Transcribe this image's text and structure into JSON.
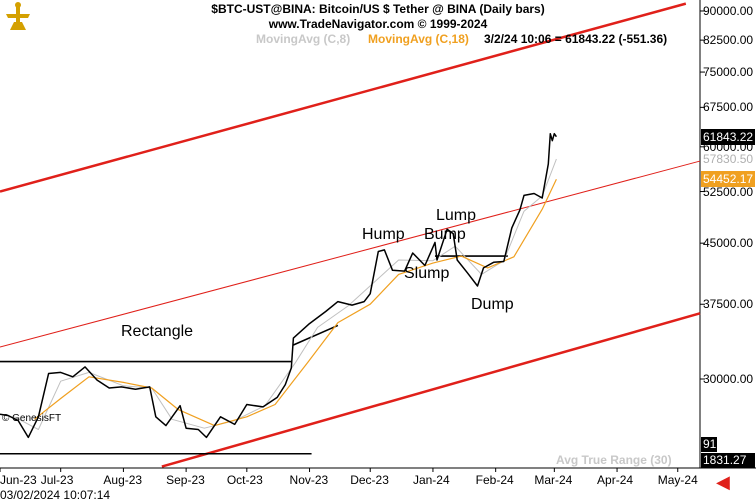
{
  "header": {
    "title": "$BTC-UST@BINA:  Bitcoin/US $ Tether @ BINA  (Daily bars)",
    "source": "www.TradeNavigator.com © 1999-2024",
    "ma_fast": "MovingAvg (C,8)",
    "ma_slow": "MovingAvg (C,18)",
    "quote": "3/2/24 10:06 = 61843.22 (-551.36)"
  },
  "annotations": {
    "rectangle": "Rectangle",
    "hump": "Hump",
    "bump": "Bump",
    "lump": "Lump",
    "slump": "Slump",
    "dump": "Dump"
  },
  "footer": {
    "copyright": "© GenesisFT",
    "atr_label": "Avg True Range (30)",
    "atr_value": "1831.27",
    "atr_small": "91",
    "datetime": "03/02/2024 10:07:14"
  },
  "colors": {
    "price": "#000000",
    "ma_fast": "#c0c0c0",
    "ma_slow": "#f0a020",
    "channel": "#e0201a",
    "badge_price_bg": "#000000",
    "badge_ma8_bg": "#ffffff",
    "badge_ma18_bg": "#f0a020"
  },
  "chart_data": {
    "type": "line",
    "title": "$BTC-UST@BINA:  Bitcoin/US $ Tether @ BINA  (Daily bars)",
    "y_scale": "log",
    "ylim": [
      23000,
      93000
    ],
    "y_ticks": [
      30000,
      37500,
      45000,
      52500,
      60000,
      67500,
      75000,
      82500,
      90000
    ],
    "y_tick_labels": [
      "30000.00",
      "37500.00",
      "45000.00",
      "52500.00",
      "60000.00",
      "67500.00",
      "75000.00",
      "82500.00",
      "90000.00"
    ],
    "x_range": [
      "2023-06-01",
      "2024-05-12"
    ],
    "x_ticks": [
      {
        "date": "2023-06-01",
        "label": "Jun-23"
      },
      {
        "date": "2023-07-01",
        "label": "Jul-23"
      },
      {
        "date": "2023-08-01",
        "label": "Aug-23"
      },
      {
        "date": "2023-09-01",
        "label": "Sep-23"
      },
      {
        "date": "2023-10-01",
        "label": "Oct-23"
      },
      {
        "date": "2023-11-01",
        "label": "Nov-23"
      },
      {
        "date": "2023-12-01",
        "label": "Dec-23"
      },
      {
        "date": "2024-01-01",
        "label": "Jan-24"
      },
      {
        "date": "2024-02-01",
        "label": "Feb-24"
      },
      {
        "date": "2024-03-01",
        "label": "Mar-24"
      },
      {
        "date": "2024-04-01",
        "label": "Apr-24"
      },
      {
        "date": "2024-05-01",
        "label": "May-24"
      }
    ],
    "series": [
      {
        "name": "$BTC-UST@BINA",
        "points": [
          [
            "2023-06-01",
            27000
          ],
          [
            "2023-06-05",
            26900
          ],
          [
            "2023-06-10",
            26500
          ],
          [
            "2023-06-15",
            25200
          ],
          [
            "2023-06-20",
            26800
          ],
          [
            "2023-06-25",
            30500
          ],
          [
            "2023-07-01",
            30600
          ],
          [
            "2023-07-07",
            30200
          ],
          [
            "2023-07-13",
            31100
          ],
          [
            "2023-07-19",
            29900
          ],
          [
            "2023-07-25",
            29200
          ],
          [
            "2023-07-31",
            29300
          ],
          [
            "2023-08-07",
            29100
          ],
          [
            "2023-08-14",
            29300
          ],
          [
            "2023-08-17",
            26800
          ],
          [
            "2023-08-22",
            26100
          ],
          [
            "2023-08-29",
            27700
          ],
          [
            "2023-09-01",
            25900
          ],
          [
            "2023-09-07",
            25800
          ],
          [
            "2023-09-11",
            25200
          ],
          [
            "2023-09-18",
            26800
          ],
          [
            "2023-09-25",
            26200
          ],
          [
            "2023-10-01",
            27800
          ],
          [
            "2023-10-09",
            27600
          ],
          [
            "2023-10-16",
            28400
          ],
          [
            "2023-10-20",
            29500
          ],
          [
            "2023-10-23",
            31000
          ],
          [
            "2023-10-24",
            33900
          ],
          [
            "2023-11-01",
            35400
          ],
          [
            "2023-11-09",
            36700
          ],
          [
            "2023-11-15",
            37800
          ],
          [
            "2023-11-22",
            37400
          ],
          [
            "2023-11-28",
            37800
          ],
          [
            "2023-12-01",
            38700
          ],
          [
            "2023-12-05",
            43900
          ],
          [
            "2023-12-08",
            44100
          ],
          [
            "2023-12-12",
            41500
          ],
          [
            "2023-12-18",
            41400
          ],
          [
            "2023-12-22",
            43700
          ],
          [
            "2023-12-28",
            42100
          ],
          [
            "2024-01-02",
            45100
          ],
          [
            "2024-01-03",
            42800
          ],
          [
            "2024-01-08",
            46900
          ],
          [
            "2024-01-11",
            46300
          ],
          [
            "2024-01-13",
            42800
          ],
          [
            "2024-01-18",
            41200
          ],
          [
            "2024-01-23",
            39600
          ],
          [
            "2024-01-26",
            41800
          ],
          [
            "2024-01-31",
            42500
          ],
          [
            "2024-02-05",
            42600
          ],
          [
            "2024-02-09",
            47100
          ],
          [
            "2024-02-13",
            49700
          ],
          [
            "2024-02-15",
            51900
          ],
          [
            "2024-02-20",
            52200
          ],
          [
            "2024-02-24",
            51500
          ],
          [
            "2024-02-27",
            57000
          ],
          [
            "2024-02-28",
            62400
          ],
          [
            "2024-02-29",
            61100
          ],
          [
            "2024-03-01",
            62400
          ],
          [
            "2024-03-02",
            61843.22
          ]
        ]
      },
      {
        "name": "MovingAvg (C,8)",
        "points": [
          [
            "2023-06-08",
            26800
          ],
          [
            "2023-06-20",
            25800
          ],
          [
            "2023-07-01",
            29800
          ],
          [
            "2023-07-15",
            30600
          ],
          [
            "2023-08-01",
            29400
          ],
          [
            "2023-08-15",
            29200
          ],
          [
            "2023-08-25",
            26600
          ],
          [
            "2023-09-10",
            25900
          ],
          [
            "2023-09-25",
            26500
          ],
          [
            "2023-10-10",
            27700
          ],
          [
            "2023-10-25",
            31500
          ],
          [
            "2023-11-05",
            35000
          ],
          [
            "2023-11-20",
            37300
          ],
          [
            "2023-12-05",
            40500
          ],
          [
            "2023-12-15",
            42800
          ],
          [
            "2024-01-01",
            42700
          ],
          [
            "2024-01-12",
            44600
          ],
          [
            "2024-01-25",
            41000
          ],
          [
            "2024-02-05",
            42700
          ],
          [
            "2024-02-15",
            49500
          ],
          [
            "2024-02-24",
            51800
          ],
          [
            "2024-03-02",
            57830.5
          ]
        ]
      },
      {
        "name": "MovingAvg (C,18)",
        "points": [
          [
            "2023-06-18",
            26600
          ],
          [
            "2023-07-01",
            28300
          ],
          [
            "2023-07-15",
            30200
          ],
          [
            "2023-08-01",
            29700
          ],
          [
            "2023-08-15",
            29200
          ],
          [
            "2023-08-28",
            27400
          ],
          [
            "2023-09-15",
            26100
          ],
          [
            "2023-10-01",
            26800
          ],
          [
            "2023-10-15",
            27800
          ],
          [
            "2023-10-31",
            31500
          ],
          [
            "2023-11-15",
            35500
          ],
          [
            "2023-12-01",
            37500
          ],
          [
            "2023-12-15",
            41000
          ],
          [
            "2024-01-01",
            42400
          ],
          [
            "2024-01-15",
            43300
          ],
          [
            "2024-01-28",
            41800
          ],
          [
            "2024-02-10",
            43200
          ],
          [
            "2024-02-24",
            49800
          ],
          [
            "2024-03-02",
            54452.17
          ]
        ]
      }
    ],
    "last_values": {
      "price": "61843.22",
      "ma_fast": "57830.50",
      "ma_slow": "54452.17"
    },
    "trendlines": [
      {
        "style": "channel-thick",
        "from": [
          "2023-06-01",
          52500
        ],
        "to": [
          "2024-05-05",
          92000
        ]
      },
      {
        "style": "channel-thin",
        "from": [
          "2023-06-01",
          33000
        ],
        "to": [
          "2024-05-12",
          57500
        ]
      },
      {
        "style": "channel-thick",
        "from": [
          "2023-08-20",
          23100
        ],
        "to": [
          "2024-05-12",
          36500
        ]
      },
      {
        "style": "black",
        "from": [
          "2023-06-01",
          31600
        ],
        "to": [
          "2023-10-23",
          31600
        ]
      },
      {
        "style": "black",
        "from": [
          "2023-06-01",
          24000
        ],
        "to": [
          "2023-11-02",
          24000
        ]
      },
      {
        "style": "black",
        "from": [
          "2023-10-24",
          33200
        ],
        "to": [
          "2023-11-15",
          35200
        ]
      },
      {
        "style": "black",
        "from": [
          "2024-01-02",
          43300
        ],
        "to": [
          "2024-02-07",
          43300
        ]
      }
    ],
    "grid": false,
    "legend": "top"
  }
}
